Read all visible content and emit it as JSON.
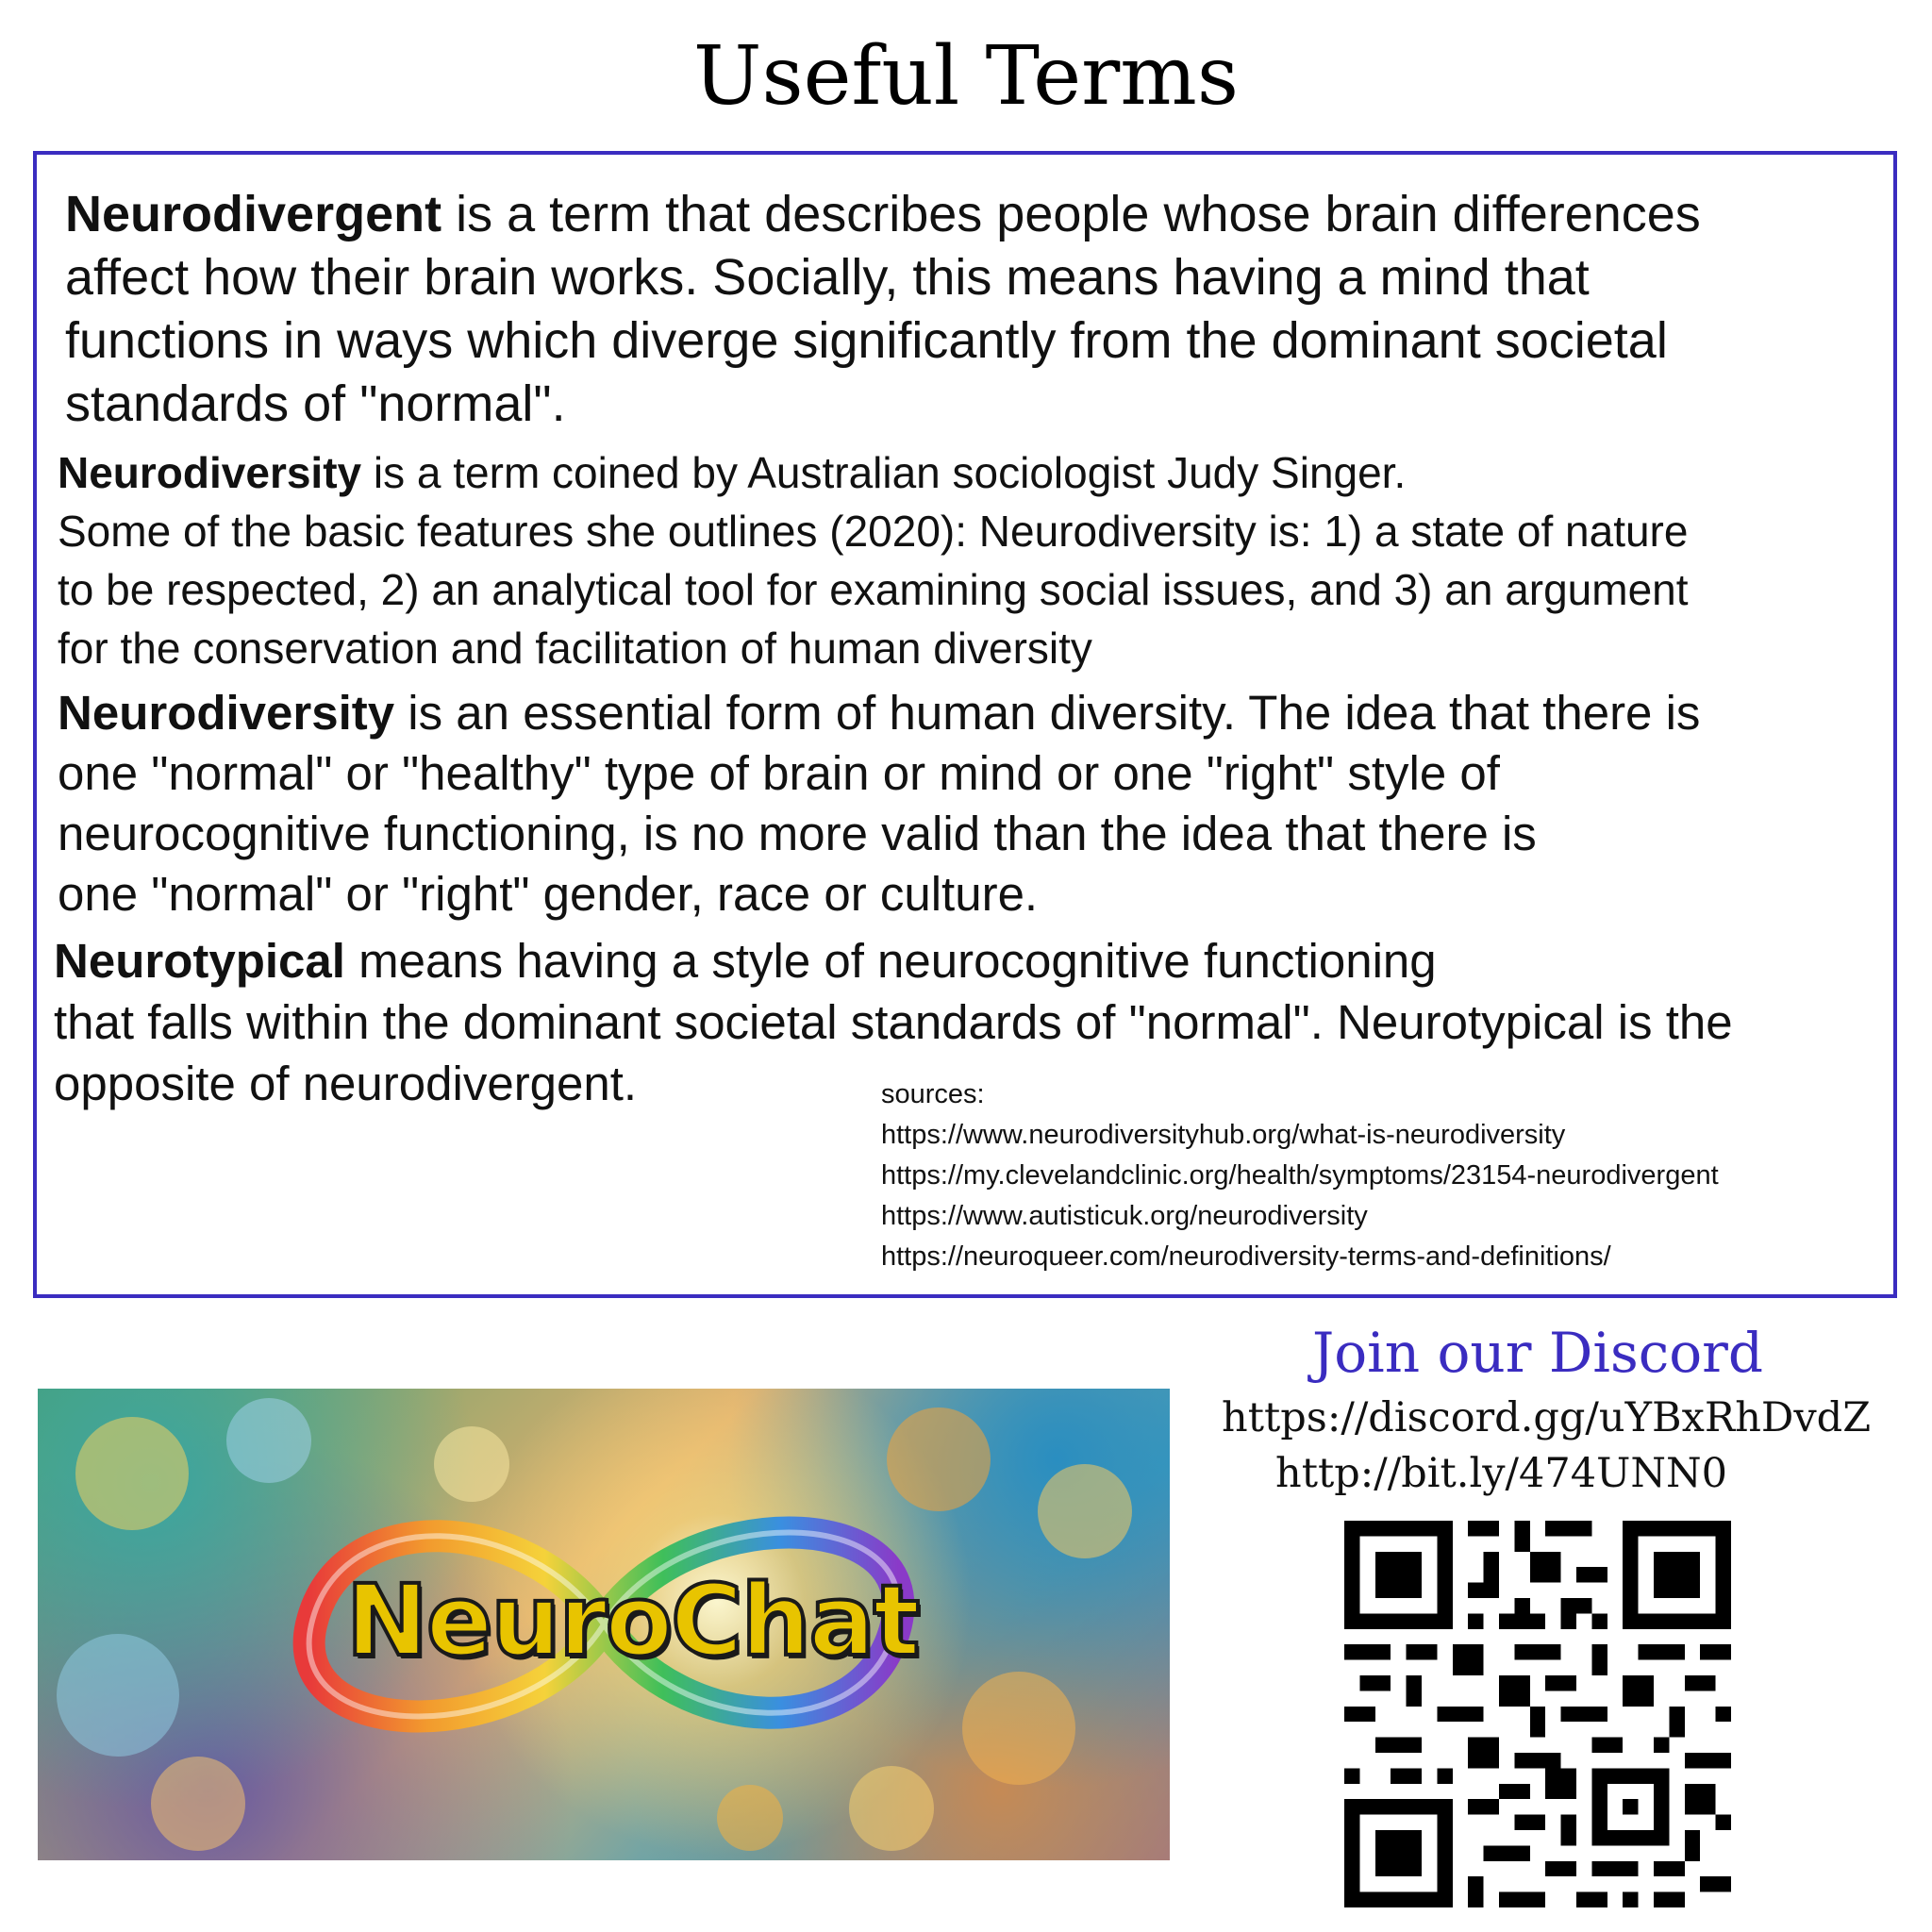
{
  "title": "Useful Terms",
  "terms": {
    "neurodivergent": {
      "term": "Neurodivergent",
      "lines": [
        " is a term that describes people whose brain differences",
        "affect how their brain works. Socially, this means having a mind that",
        "functions in ways which diverge significantly from the dominant societal",
        "standards of \"normal\"."
      ]
    },
    "neurodiversity_singer": {
      "term": "Neurodiversity",
      "lines": [
        " is a term coined by Australian sociologist Judy Singer.",
        "Some of the basic features she outlines (2020): Neurodiversity is: 1) a state of nature",
        "to be respected, 2) an analytical tool for examining social issues, and 3) an argument",
        "for the conservation and facilitation of human diversity"
      ]
    },
    "neurodiversity_essential": {
      "term": "Neurodiversity",
      "lines": [
        " is an essential form of human diversity. The idea that there is",
        "one \"normal\" or \"healthy\" type of brain or mind or one \"right\" style of",
        "neurocognitive functioning, is no more valid than the idea that there is",
        "one \"normal\" or \"right\" gender, race or culture."
      ]
    },
    "neurotypical": {
      "term": "Neurotypical",
      "lines": [
        " means having a style of neurocognitive functioning",
        "that falls within the dominant societal standards of \"normal\". Neurotypical is the",
        "opposite of neurodivergent."
      ]
    }
  },
  "sources": {
    "label": "sources:",
    "links": [
      "https://www.neurodiversityhub.org/what-is-neurodiversity",
      "https://my.clevelandclinic.org/health/symptoms/23154-neurodivergent",
      "https://www.autisticuk.org/neurodiversity",
      "https://neuroqueer.com/neurodiversity-terms-and-definitions/"
    ]
  },
  "banner": {
    "brand_text": "NeuroChat"
  },
  "discord": {
    "heading": "Join our Discord",
    "link_primary": "https://discord.gg/uYBxRhDvdZ",
    "link_short": "http://bit.ly/474UNN0"
  },
  "colors": {
    "accent": "#3a2cc0",
    "brand_yellow": "#e8c400"
  },
  "icons": {
    "qr": "qr-code-icon",
    "infinity": "rainbow-infinity-icon"
  }
}
